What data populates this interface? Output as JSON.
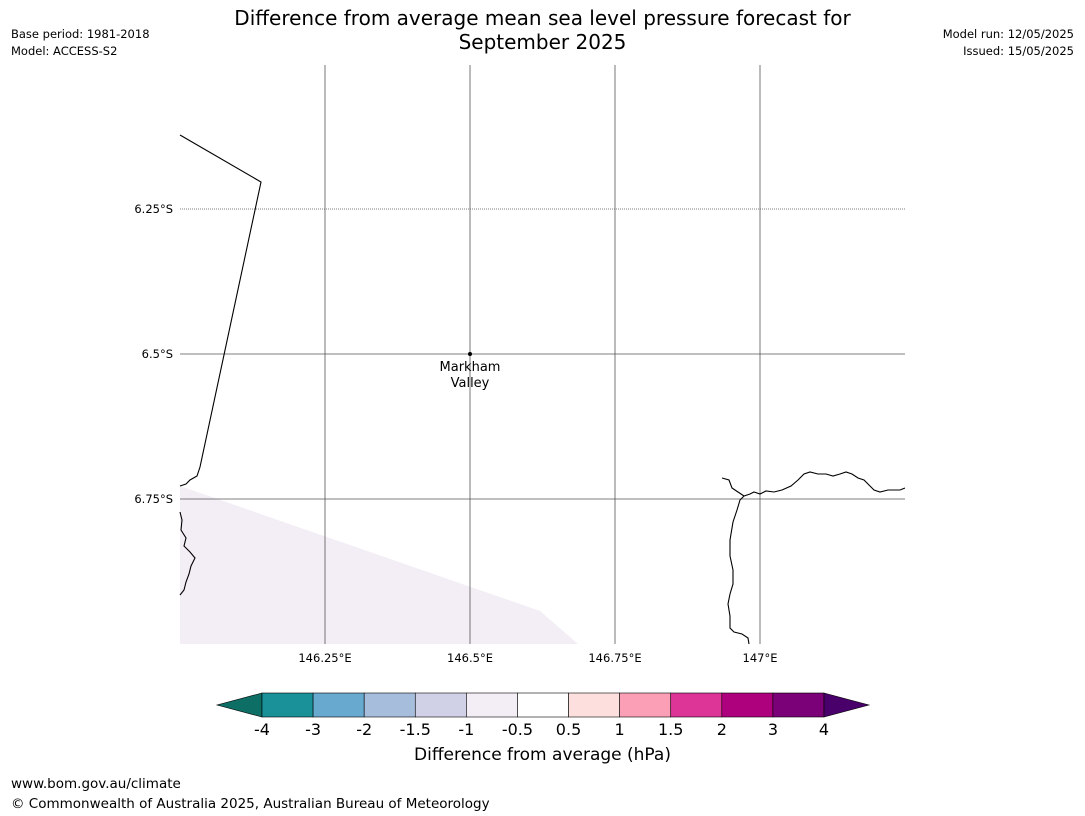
{
  "title": {
    "line1": "Difference from average mean sea level pressure forecast for",
    "line2": "September 2025"
  },
  "meta": {
    "base_period": "Base period: 1981-2018",
    "model": "Model: ACCESS-S2",
    "model_run": "Model run: 12/05/2025",
    "issued": "Issued: 15/05/2025"
  },
  "map": {
    "lat_labels": [
      "6.25°S",
      "6.5°S",
      "6.75°S"
    ],
    "lon_labels": [
      "146.25°E",
      "146.5°E",
      "146.75°E",
      "147°E"
    ],
    "place": {
      "line1": "Markham",
      "line2": "Valley"
    },
    "shaded_color": "#f3eef5",
    "coast_color": "#000000"
  },
  "colorbar": {
    "title": "Difference from average (hPa)",
    "tick_labels": [
      "-4",
      "-3",
      "-2",
      "-1.5",
      "-1",
      "-0.5",
      "0.5",
      "1",
      "1.5",
      "2",
      "3",
      "4"
    ],
    "colors": [
      "#0d6e66",
      "#1a9099",
      "#67a9cf",
      "#a6bddb",
      "#d0d1e6",
      "#f3eef5",
      "#ffffff",
      "#fde0dd",
      "#fa9fb5",
      "#dd3497",
      "#ae017e",
      "#7a0177",
      "#49006a"
    ]
  },
  "footer": {
    "url": "www.bom.gov.au/climate",
    "copyright": "© Commonwealth of Australia 2025, Australian Bureau of Meteorology"
  }
}
